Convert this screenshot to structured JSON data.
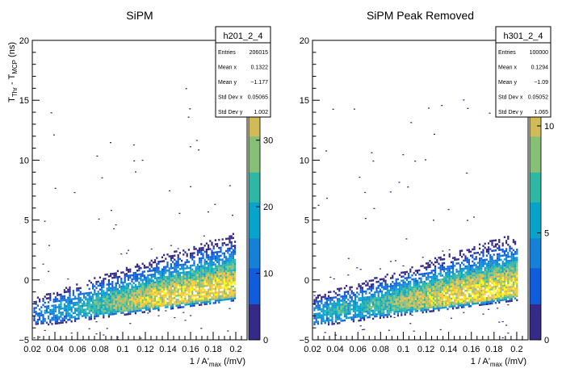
{
  "chart_data": [
    {
      "type": "heatmap",
      "title": "SiPM",
      "xlabel": "1 / A'",
      "xlabel_sub": "max",
      "xlabel_unit": " (/mV)",
      "ylabel_main": "T",
      "ylabel_sub1": "Thr",
      "ylabel_mid": " - T",
      "ylabel_sub2": "MCP",
      "ylabel_unit": " (ns)",
      "xlim": [
        0.02,
        0.21
      ],
      "ylim": [
        -5,
        20
      ],
      "x_ticks": [
        "0.02",
        "0.04",
        "0.06",
        "0.08",
        "0.1",
        "0.12",
        "0.14",
        "0.16",
        "0.18",
        "0.2"
      ],
      "y_ticks": [
        "−5",
        "0",
        "5",
        "10",
        "15",
        "20"
      ],
      "z_range": [
        0,
        45
      ],
      "z_ticks": [
        "0",
        "10",
        "20",
        "30"
      ],
      "band": {
        "y_at_x002": -2.5,
        "y_at_x02": -0.3
      },
      "stats": {
        "title": "h201_2_4",
        "rows": [
          {
            "label": "Entries",
            "value": "206015"
          },
          {
            "label": "Mean x",
            "value": "0.1322"
          },
          {
            "label": "Mean y",
            "value": "−1.177"
          },
          {
            "label": "Std Dev x",
            "value": "0.05065"
          },
          {
            "label": "Std Dev y",
            "value": "1.002"
          }
        ]
      }
    },
    {
      "type": "heatmap",
      "title": "SiPM Peak Removed",
      "xlabel": "1 / A'",
      "xlabel_sub": "max",
      "xlabel_unit": " (/mV)",
      "xlim": [
        0.02,
        0.21
      ],
      "ylim": [
        -5,
        20
      ],
      "x_ticks": [
        "0.02",
        "0.04",
        "0.06",
        "0.08",
        "0.1",
        "0.12",
        "0.14",
        "0.16",
        "0.18",
        "0.2"
      ],
      "y_ticks": [
        "−5",
        "0",
        "5",
        "10",
        "15",
        "20"
      ],
      "z_range": [
        0,
        14
      ],
      "z_ticks": [
        "0",
        "5",
        "10"
      ],
      "band": {
        "y_at_x002": -2.5,
        "y_at_x02": -0.3
      },
      "stats": {
        "title": "h301_2_4",
        "rows": [
          {
            "label": "Entries",
            "value": "100000"
          },
          {
            "label": "Mean x",
            "value": "0.1294"
          },
          {
            "label": "Mean y",
            "value": "−1.09"
          },
          {
            "label": "Std Dev x",
            "value": "0.05052"
          },
          {
            "label": "Std Dev y",
            "value": "1.065"
          }
        ]
      }
    }
  ]
}
